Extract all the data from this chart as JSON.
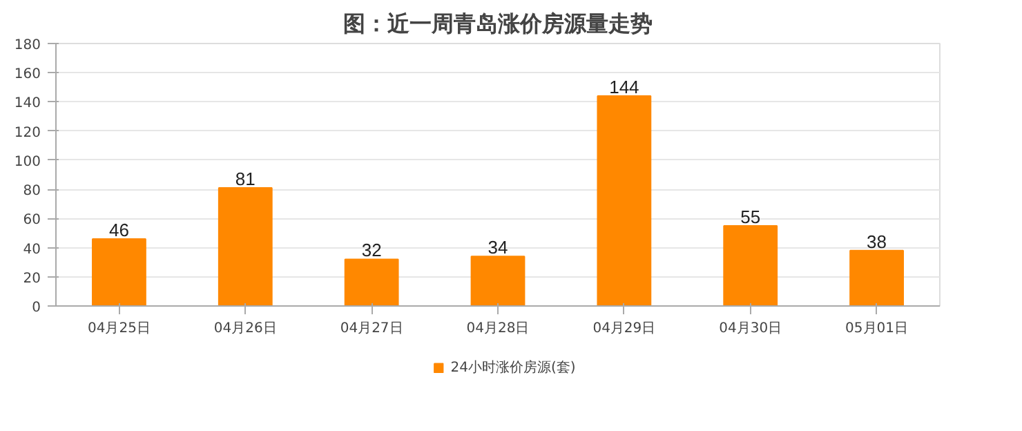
{
  "chart_data": {
    "type": "bar",
    "title": "图：近一周青岛涨价房源量走势",
    "categories": [
      "04月25日",
      "04月26日",
      "04月27日",
      "04月28日",
      "04月29日",
      "04月30日",
      "05月01日"
    ],
    "series": [
      {
        "name": "24小时涨价房源(套)",
        "color": "#ff8800",
        "values": [
          46,
          81,
          32,
          34,
          144,
          55,
          38
        ]
      }
    ],
    "ylim": [
      0,
      180
    ],
    "yticks": [
      0,
      20,
      40,
      60,
      80,
      100,
      120,
      140,
      160,
      180
    ],
    "grid": "y",
    "legend": "bottom",
    "data_labels": true
  }
}
